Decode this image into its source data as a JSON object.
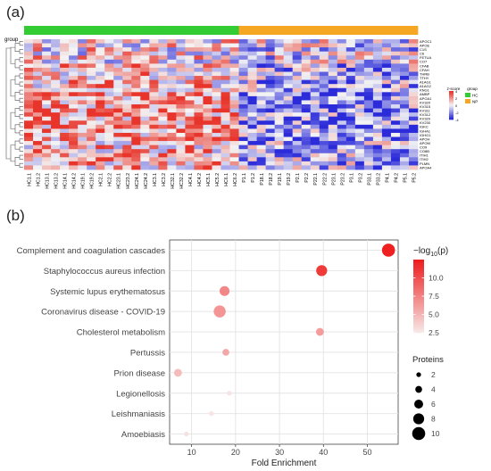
{
  "panel_a": {
    "label": "(a)"
  },
  "panel_b": {
    "label": "(b)"
  },
  "chart_data": [
    {
      "type": "heatmap",
      "panel": "a",
      "annotation_title": "group",
      "column_labels": [
        "HC1.1",
        "HC1.2",
        "HC13.1",
        "HC13.2",
        "HC14.1",
        "HC14.2",
        "HC19.1",
        "HC19.2",
        "HC2.1",
        "HC2.2",
        "HC23.1",
        "HC23.2",
        "HC24.1",
        "HC24.2",
        "HC3.1",
        "HC3.2",
        "HC32.1",
        "HC32.2",
        "HC4.1",
        "HC4.2",
        "HC5.1",
        "HC5.2",
        "HC6.1",
        "HC6.2",
        "P1.1",
        "P1.2",
        "P18.1",
        "P18.2",
        "P19.1",
        "P19.2",
        "P2.1",
        "P2.2",
        "P22.1",
        "P22.2",
        "P23.1",
        "P23.2",
        "P3.1",
        "P3.2",
        "P33.1",
        "P33.2",
        "P4.1",
        "P4.2",
        "P5.1",
        "P5.2"
      ],
      "column_groups": [
        "HC",
        "HC",
        "HC",
        "HC",
        "HC",
        "HC",
        "HC",
        "HC",
        "HC",
        "HC",
        "HC",
        "HC",
        "HC",
        "HC",
        "HC",
        "HC",
        "HC",
        "HC",
        "HC",
        "HC",
        "HC",
        "HC",
        "HC",
        "HC",
        "NP",
        "NP",
        "NP",
        "NP",
        "NP",
        "NP",
        "NP",
        "NP",
        "NP",
        "NP",
        "NP",
        "NP",
        "NP",
        "NP",
        "NP",
        "NP",
        "NP",
        "NP",
        "NP",
        "NP"
      ],
      "row_labels": [
        "APOC1",
        "APOE",
        "C1S",
        "C6",
        "FETUA",
        "CO7",
        "CFAB",
        "CFAH",
        "THRB",
        "TTHY",
        "A1AG1",
        "A1AG2",
        "KNG1",
        "AMBP",
        "APOA1",
        "KV320",
        "KV315",
        "KV311",
        "KV312",
        "KV320",
        "KV230",
        "IGKC",
        "IGHA1",
        "IGHG1",
        "APOH",
        "APOM",
        "CO9",
        "CO8B",
        "ITIH1",
        "ITIH2",
        "PLMN",
        "APOA4"
      ],
      "legend": {
        "z_title": "z-score",
        "z_ticks": [
          "4",
          "2",
          "0",
          "-2",
          "-4"
        ],
        "group_title": "group",
        "groups": [
          {
            "name": "HC",
            "color": "#33cc33"
          },
          {
            "name": "NP",
            "color": "#f5a623"
          }
        ]
      },
      "colors": {
        "high": "#e8342a",
        "mid": "#f4f4f4",
        "low": "#2b2bd9"
      }
    },
    {
      "type": "scatter",
      "panel": "b",
      "xlabel": "Fold Enrichment",
      "xlim": [
        5,
        57
      ],
      "xticks": [
        10,
        20,
        30,
        40,
        50
      ],
      "categories": [
        "Complement and coagulation cascades",
        "Staphylococcus aureus infection",
        "Systemic lupus erythematosus",
        "Coronavirus disease - COVID-19",
        "Cholesterol metabolism",
        "Pertussis",
        "Prion disease",
        "Legionellosis",
        "Leishmaniasis",
        "Amoebiasis"
      ],
      "points": [
        {
          "term": "Complement and coagulation cascades",
          "fold_enrichment": 54.8,
          "neg_log10_p": 12.3,
          "proteins": 10
        },
        {
          "term": "Staphylococcus aureus infection",
          "fold_enrichment": 39.6,
          "neg_log10_p": 11.0,
          "proteins": 8
        },
        {
          "term": "Systemic lupus erythematosus",
          "fold_enrichment": 17.5,
          "neg_log10_p": 7.2,
          "proteins": 7
        },
        {
          "term": "Coronavirus disease - COVID-19",
          "fold_enrichment": 16.4,
          "neg_log10_p": 6.5,
          "proteins": 9
        },
        {
          "term": "Cholesterol metabolism",
          "fold_enrichment": 39.2,
          "neg_log10_p": 6.2,
          "proteins": 5
        },
        {
          "term": "Pertussis",
          "fold_enrichment": 17.8,
          "neg_log10_p": 5.6,
          "proteins": 4
        },
        {
          "term": "Prion disease",
          "fold_enrichment": 6.9,
          "neg_log10_p": 4.6,
          "proteins": 5
        },
        {
          "term": "Legionellosis",
          "fold_enrichment": 18.6,
          "neg_log10_p": 2.6,
          "proteins": 2
        },
        {
          "term": "Leishmaniasis",
          "fold_enrichment": 14.5,
          "neg_log10_p": 2.6,
          "proteins": 2
        },
        {
          "term": "Amoebiasis",
          "fold_enrichment": 8.8,
          "neg_log10_p": 2.7,
          "proteins": 2
        }
      ],
      "color_legend": {
        "title": "−log10(p)",
        "ticks": [
          10.0,
          7.5,
          5.0,
          2.5
        ],
        "tick_labels": [
          "10.0",
          "7.5",
          "5.0",
          "2.5"
        ],
        "range": [
          2.5,
          12.5
        ],
        "low_color": "#f7e6e6",
        "high_color": "#ee1c1c"
      },
      "size_legend": {
        "title": "Proteins",
        "values": [
          2,
          4,
          6,
          8,
          10
        ]
      },
      "grid": true
    }
  ]
}
